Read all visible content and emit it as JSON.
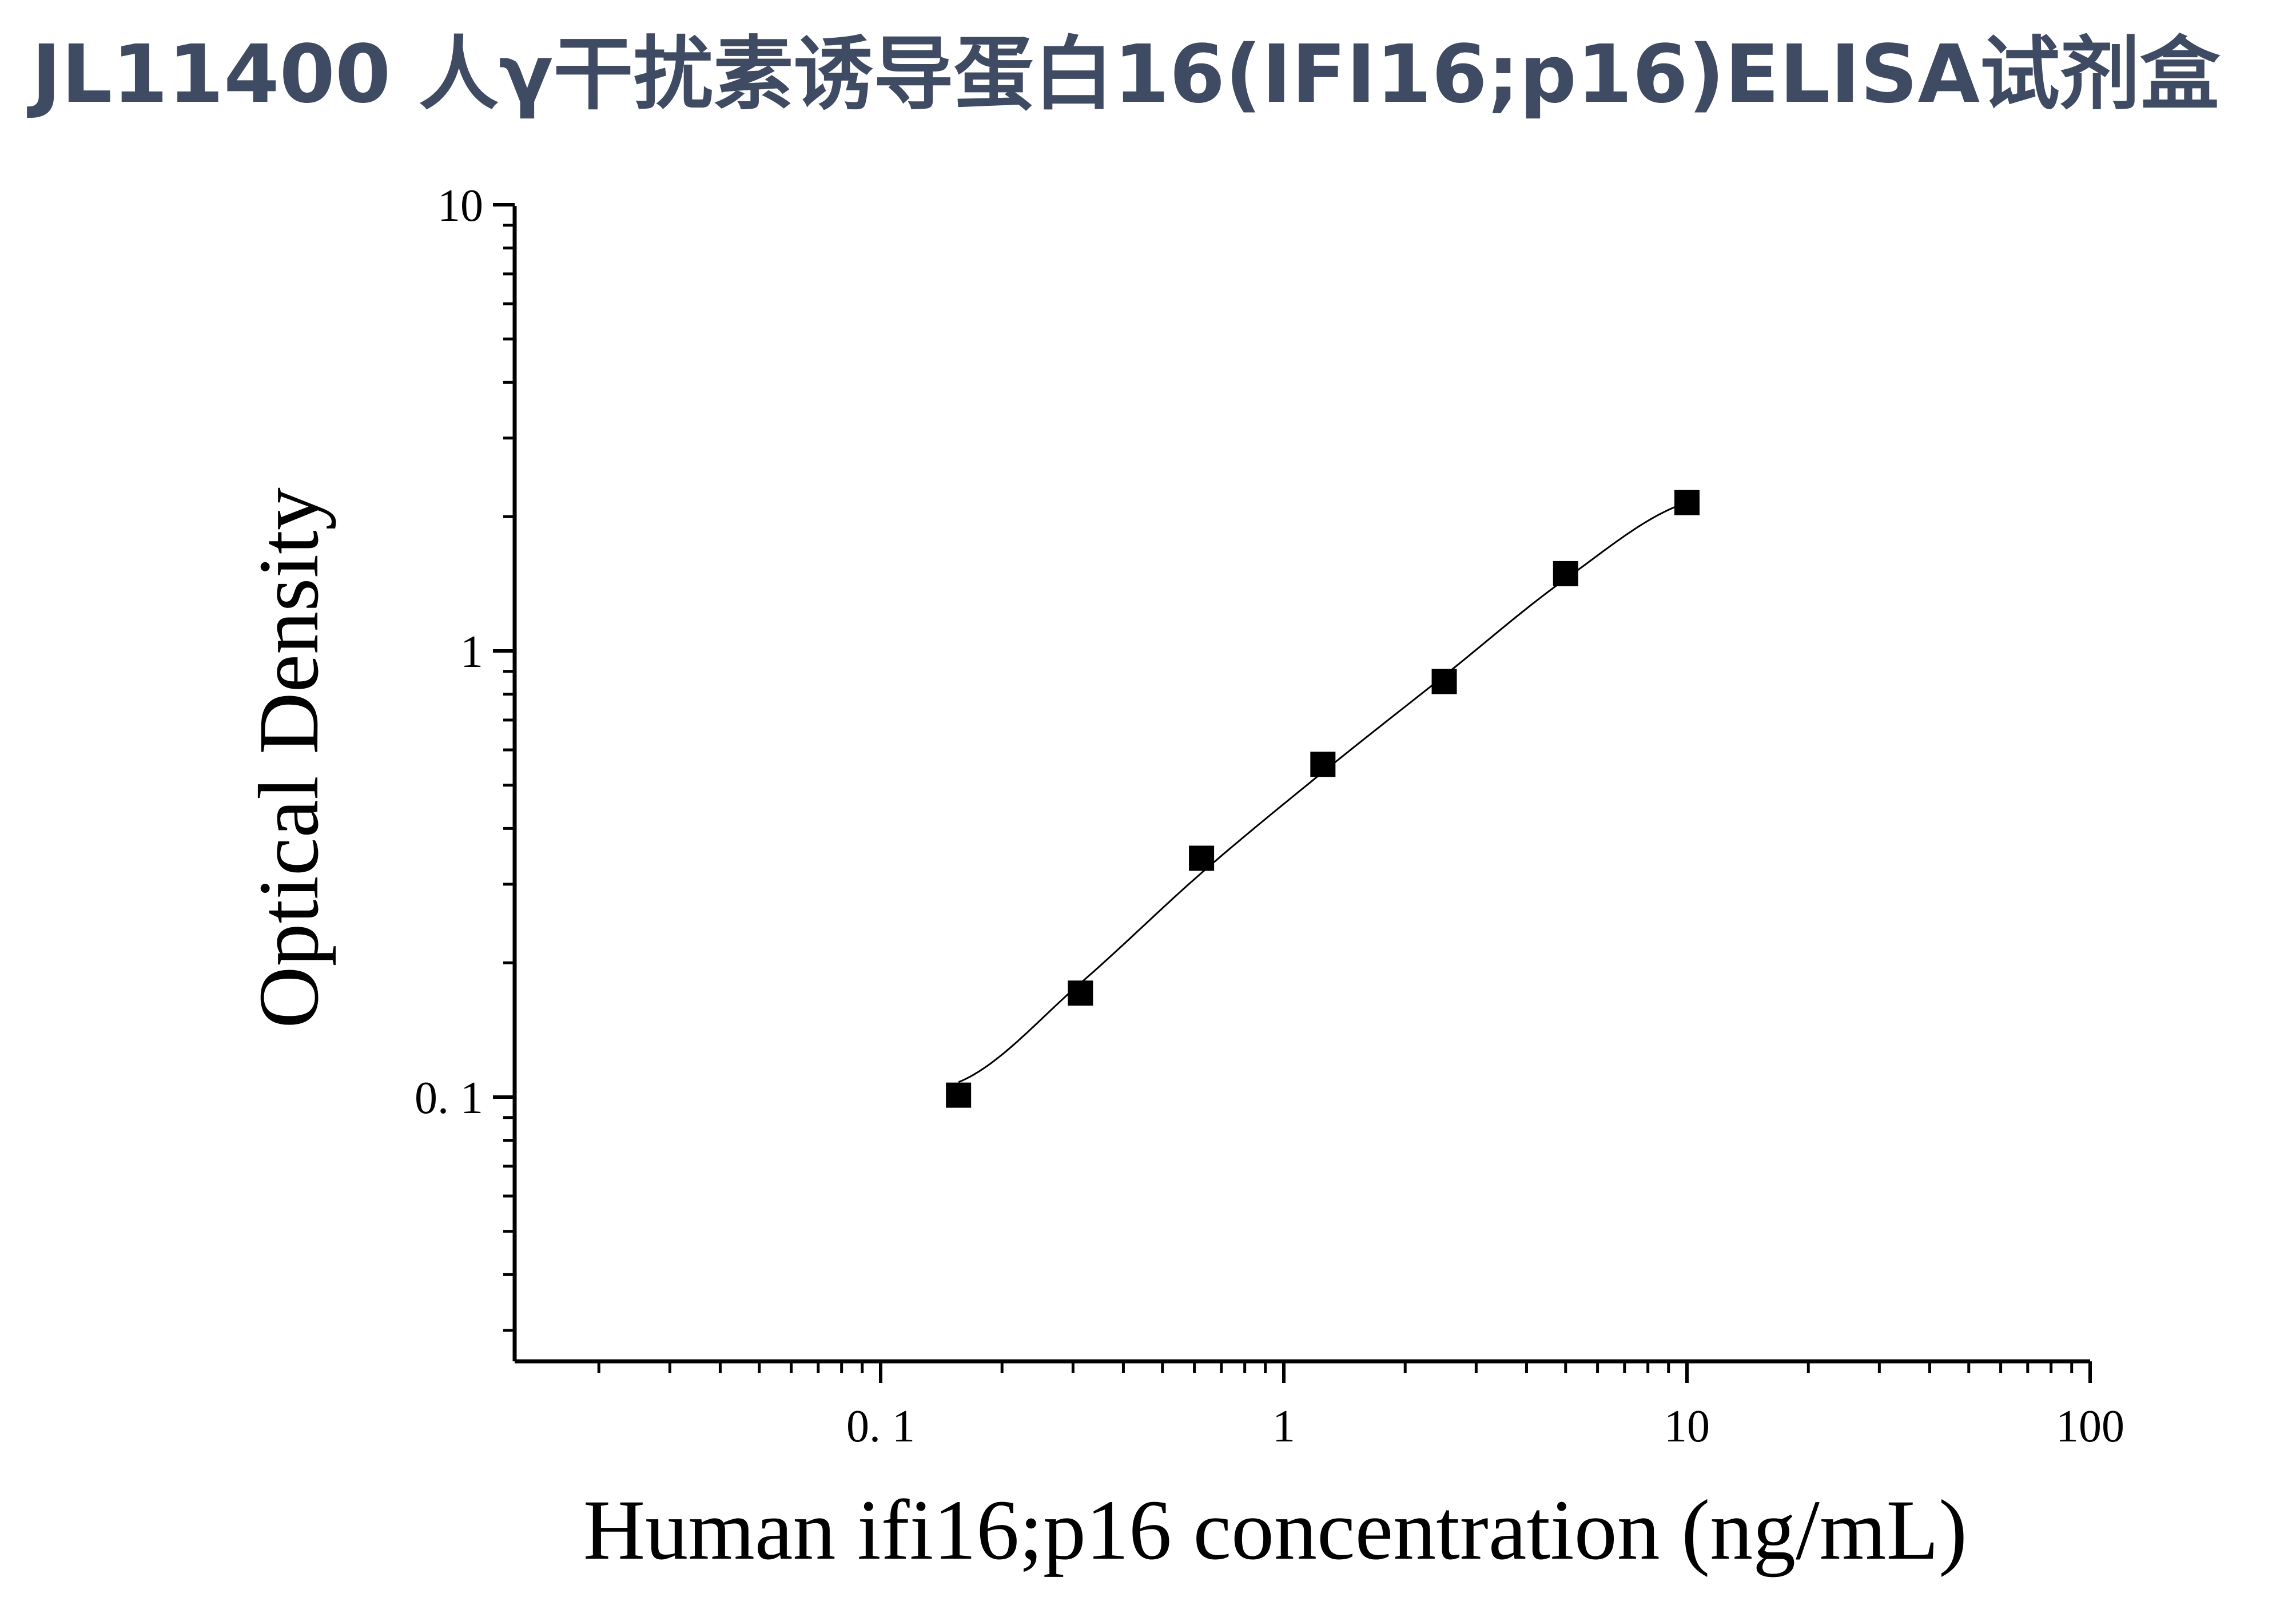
{
  "title": "JL11400 人γ干扰素诱导蛋白16(IFI16;p16)ELISA试剂盒",
  "colors": {
    "title": "#3f4a63",
    "axis": "#000000",
    "marker": "#000000",
    "curve": "#000000",
    "background": "#ffffff"
  },
  "chart_data": {
    "type": "scatter",
    "title": "JL11400 人γ干扰素诱导蛋白16(IFI16;p16)ELISA试剂盒",
    "xlabel": "Human ifi16;p16 concentration (ng/mL)",
    "ylabel": "Optical Density",
    "xscale": "log",
    "yscale": "log",
    "xlim": [
      0.013,
      100
    ],
    "ylim": [
      0.026,
      10
    ],
    "x_ticks": [
      {
        "value": 0.1,
        "label": "0. 1"
      },
      {
        "value": 1,
        "label": "1"
      },
      {
        "value": 10,
        "label": "10"
      },
      {
        "value": 100,
        "label": "100"
      }
    ],
    "y_ticks": [
      {
        "value": 0.1,
        "label": "0. 1"
      },
      {
        "value": 1,
        "label": "1"
      },
      {
        "value": 10,
        "label": "10"
      }
    ],
    "grid": false,
    "legend": "none",
    "marker": "square",
    "series": [
      {
        "x": [
          0.156,
          0.313,
          0.625,
          1.25,
          2.5,
          5,
          10
        ],
        "y": [
          0.101,
          0.171,
          0.343,
          0.557,
          0.854,
          1.49,
          2.15
        ]
      }
    ],
    "fit_curve": {
      "x": [
        0.156,
        0.313,
        0.625,
        1.25,
        2.5,
        5,
        10
      ],
      "y": [
        0.108,
        0.18,
        0.318,
        0.535,
        0.88,
        1.45,
        2.15
      ]
    }
  }
}
